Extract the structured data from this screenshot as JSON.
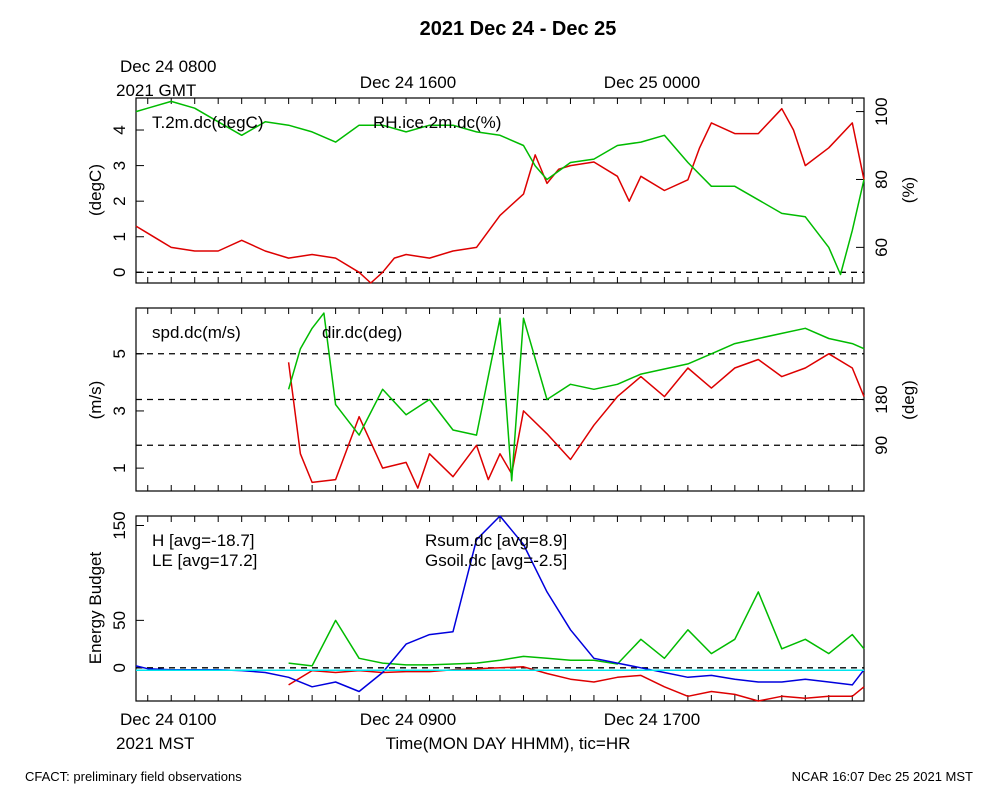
{
  "title": "2021 Dec 24 - Dec 25",
  "top_time_labels": {
    "start_line1": "Dec 24 0800",
    "start_line2": "2021 GMT",
    "mid": "Dec 24 1600",
    "end": "Dec 25 0000"
  },
  "bottom_time_labels": {
    "start_line1": "Dec 24 0100",
    "start_line2": "2021 MST",
    "mid": "Dec 24 0900",
    "end": "Dec 24 1700"
  },
  "xlabel": "Time(MON DAY HHMM), tic=HR",
  "footer_left": "CFACT: preliminary field observations",
  "footer_right": "NCAR 16:07 Dec 25 2021 MST",
  "colors": {
    "red": "#dd0000",
    "green": "#00bb00",
    "blue": "#0000dd",
    "cyan": "#00e5ee"
  },
  "chart_data": [
    {
      "type": "line",
      "panel": "temperature-humidity",
      "x_range_hours_mst": [
        0.5,
        31.5
      ],
      "ylabel_left": "(degC)",
      "ylabel_right": "(%)",
      "ylim_left": [
        -0.3,
        4.9
      ],
      "ylim_right": [
        49.5,
        104
      ],
      "yticks_left": [
        "0",
        "1",
        "2",
        "3",
        "4"
      ],
      "yticks_right": [
        "60",
        "80",
        "100"
      ],
      "ref_lines_left": [
        0
      ],
      "series": [
        {
          "name": "T.2m.dc(degC)",
          "axis": "left",
          "color": "red",
          "x": [
            0.5,
            1,
            1.5,
            2,
            3,
            4,
            5,
            6,
            7,
            8,
            9,
            10,
            10.5,
            11,
            11.5,
            12,
            13,
            14,
            15,
            16,
            17,
            17.5,
            18,
            18.5,
            19,
            20,
            21,
            21.5,
            22,
            23,
            24,
            24.5,
            25,
            26,
            27,
            28,
            28.5,
            29,
            30,
            31,
            31.5
          ],
          "y": [
            1.3,
            1.1,
            0.9,
            0.7,
            0.6,
            0.6,
            0.9,
            0.6,
            0.4,
            0.5,
            0.4,
            0.0,
            -0.3,
            0.0,
            0.4,
            0.5,
            0.4,
            0.6,
            0.7,
            1.6,
            2.2,
            3.3,
            2.5,
            2.9,
            3.0,
            3.1,
            2.7,
            2.0,
            2.7,
            2.3,
            2.6,
            3.5,
            4.2,
            3.9,
            3.9,
            4.6,
            4.0,
            3.0,
            3.5,
            4.2,
            2.6
          ]
        },
        {
          "name": "RH.ice.2m.dc(%)",
          "axis": "right",
          "color": "green",
          "x": [
            0.5,
            1,
            2,
            3,
            4,
            5,
            6,
            7,
            8,
            9,
            10,
            11,
            12,
            13,
            14,
            15,
            16,
            17,
            17.5,
            18,
            19,
            20,
            21,
            22,
            23,
            24,
            25,
            26,
            27,
            28,
            29,
            30,
            30.5,
            31,
            31.5
          ],
          "y": [
            100,
            101,
            103,
            101,
            97,
            93,
            97,
            96,
            94,
            91,
            96,
            96,
            94,
            96,
            96,
            94,
            93,
            90,
            84,
            80,
            85,
            86,
            90,
            91,
            93,
            85,
            78,
            78,
            74,
            70,
            69,
            60,
            52,
            65,
            80
          ]
        }
      ]
    },
    {
      "type": "line",
      "panel": "wind",
      "x_range_hours_mst": [
        0.5,
        31.5
      ],
      "ylabel_left": "(m/s)",
      "ylabel_right": "(deg)",
      "ylim_left": [
        0.2,
        6.6
      ],
      "ylim_right": [
        0,
        360
      ],
      "yticks_left": [
        "1",
        "3",
        "5"
      ],
      "yticks_right": [
        "90",
        "180"
      ],
      "ref_lines_right": [
        90,
        180,
        270
      ],
      "series": [
        {
          "name": "spd.dc(m/s)",
          "axis": "left",
          "color": "red",
          "x": [
            7,
            7.5,
            8,
            9,
            10,
            11,
            12,
            12.5,
            13,
            14,
            15,
            15.5,
            16,
            16.5,
            17,
            18,
            19,
            20,
            21,
            22,
            23,
            24,
            25,
            26,
            27,
            28,
            29,
            30,
            31,
            31.5
          ],
          "y": [
            4.7,
            1.5,
            0.5,
            0.6,
            2.8,
            1.0,
            1.2,
            0.3,
            1.5,
            0.7,
            1.8,
            0.6,
            1.5,
            0.8,
            3.0,
            2.2,
            1.3,
            2.5,
            3.5,
            4.2,
            3.5,
            4.5,
            3.8,
            4.5,
            4.8,
            4.2,
            4.5,
            5.0,
            4.5,
            3.5
          ]
        },
        {
          "name": "dir.dc(deg)",
          "axis": "right",
          "color": "green",
          "x": [
            7,
            7.5,
            8,
            8.5,
            9,
            10,
            11,
            12,
            13,
            14,
            15,
            16,
            16.5,
            17,
            18,
            19,
            20,
            21,
            22,
            23,
            24,
            25,
            26,
            27,
            28,
            29,
            30,
            31,
            31.5
          ],
          "y": [
            200,
            280,
            320,
            350,
            170,
            110,
            200,
            150,
            180,
            120,
            110,
            340,
            20,
            340,
            180,
            210,
            200,
            210,
            230,
            240,
            250,
            270,
            290,
            300,
            310,
            320,
            300,
            290,
            280
          ]
        }
      ]
    },
    {
      "type": "line",
      "panel": "energy-budget",
      "x_range_hours_mst": [
        0.5,
        31.5
      ],
      "ylabel_left": "Energy Budget",
      "ylim_left": [
        -35,
        160
      ],
      "yticks_left": [
        "0",
        "50",
        "150"
      ],
      "ref_lines_left": [
        0
      ],
      "series": [
        {
          "name": "H [avg=-18.7]",
          "color": "red",
          "x": [
            7,
            8,
            9,
            10,
            11,
            12,
            13,
            14,
            15,
            16,
            17,
            18,
            19,
            20,
            21,
            22,
            23,
            24,
            25,
            26,
            27,
            28,
            29,
            30,
            31,
            31.5
          ],
          "y": [
            -18,
            -3,
            -5,
            -3,
            -5,
            -4,
            -4,
            -2,
            -1,
            0,
            1,
            -6,
            -12,
            -15,
            -10,
            -8,
            -20,
            -30,
            -25,
            -28,
            -35,
            -30,
            -32,
            -30,
            -30,
            -20
          ]
        },
        {
          "name": "LE [avg=17.2]",
          "color": "green",
          "x": [
            7,
            8,
            9,
            10,
            11,
            12,
            13,
            14,
            15,
            16,
            17,
            18,
            19,
            20,
            21,
            22,
            23,
            24,
            25,
            26,
            27,
            28,
            29,
            30,
            31,
            31.5
          ],
          "y": [
            5,
            2,
            50,
            10,
            5,
            3,
            3,
            4,
            5,
            8,
            12,
            10,
            8,
            8,
            4,
            30,
            10,
            40,
            15,
            30,
            80,
            20,
            30,
            15,
            35,
            20
          ]
        },
        {
          "name": "Rsum.dc [avg=8.9]",
          "color": "blue",
          "x": [
            0.5,
            1,
            2,
            3,
            4,
            5,
            6,
            7,
            8,
            9,
            10,
            11,
            12,
            13,
            14,
            15,
            16,
            16.5,
            17,
            18,
            19,
            20,
            21,
            22,
            23,
            24,
            25,
            26,
            27,
            28,
            29,
            30,
            31,
            31.5
          ],
          "y": [
            2,
            -1,
            -2,
            -2,
            -2,
            -3,
            -5,
            -10,
            -20,
            -15,
            -25,
            -5,
            25,
            35,
            38,
            135,
            160,
            145,
            130,
            80,
            40,
            10,
            5,
            0,
            -5,
            -10,
            -8,
            -12,
            -15,
            -15,
            -12,
            -15,
            -18,
            -2
          ]
        },
        {
          "name": "Gsoil.dc [avg=-2.5]",
          "color": "cyan",
          "x": [
            0.5,
            31.5
          ],
          "y": [
            -2.5,
            -2.5
          ]
        }
      ]
    }
  ]
}
